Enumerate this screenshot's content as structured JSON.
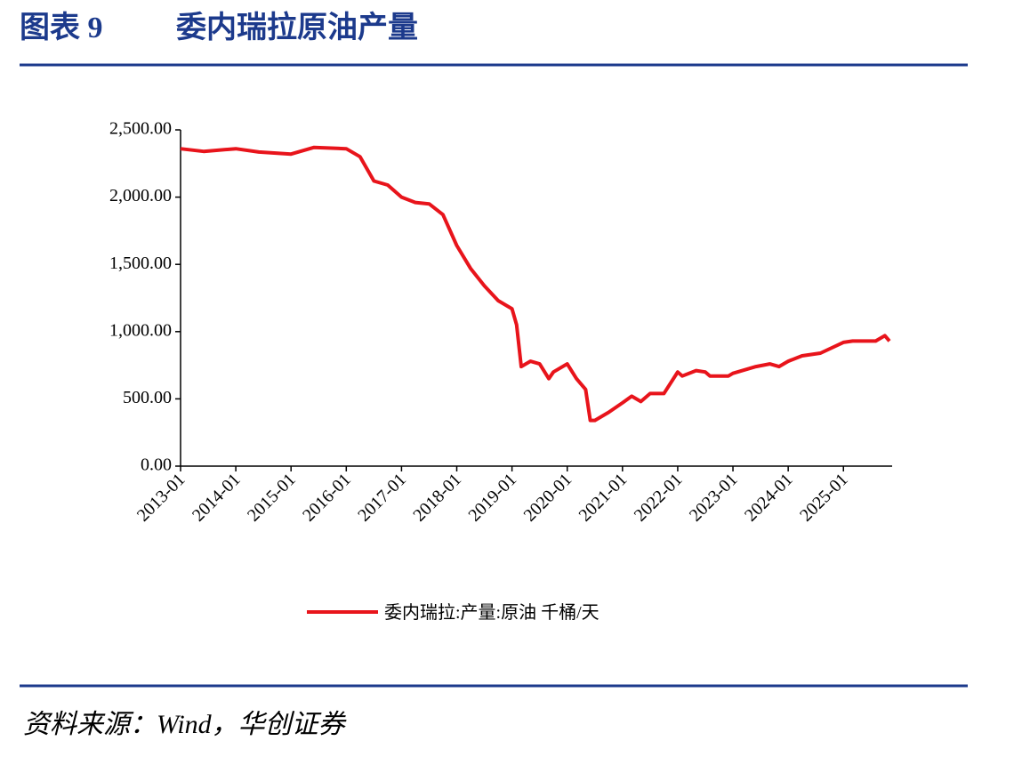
{
  "figure_label": "图表 9",
  "source": "资料来源：Wind，华创证券",
  "chart_data": {
    "type": "line",
    "title": "委内瑞拉原油产量",
    "x": [
      "2013-01",
      "2013-06",
      "2014-01",
      "2014-06",
      "2015-01",
      "2015-06",
      "2016-01",
      "2016-04",
      "2016-07",
      "2016-10",
      "2017-01",
      "2017-04",
      "2017-07",
      "2017-10",
      "2018-01",
      "2018-04",
      "2018-07",
      "2018-10",
      "2019-01",
      "2019-02",
      "2019-03",
      "2019-05",
      "2019-07",
      "2019-09",
      "2019-10",
      "2020-01",
      "2020-03",
      "2020-05",
      "2020-06",
      "2020-07",
      "2020-10",
      "2021-01",
      "2021-03",
      "2021-05",
      "2021-07",
      "2021-10",
      "2022-01",
      "2022-02",
      "2022-05",
      "2022-07",
      "2022-08",
      "2022-12",
      "2023-01",
      "2023-06",
      "2023-09",
      "2023-11",
      "2024-01",
      "2024-04",
      "2024-08",
      "2025-01",
      "2025-03",
      "2025-08",
      "2025-10",
      "2025-11"
    ],
    "series": [
      {
        "name": "委内瑞拉:产量:原油 千桶/天",
        "color": "#e8141b",
        "values": [
          2360,
          2340,
          2360,
          2335,
          2320,
          2370,
          2360,
          2300,
          2120,
          2090,
          2000,
          1960,
          1950,
          1870,
          1640,
          1470,
          1340,
          1230,
          1170,
          1050,
          740,
          780,
          760,
          650,
          700,
          760,
          650,
          570,
          340,
          340,
          400,
          470,
          520,
          480,
          540,
          540,
          700,
          670,
          710,
          700,
          670,
          670,
          690,
          740,
          760,
          740,
          780,
          820,
          840,
          920,
          930,
          930,
          970,
          930
        ]
      }
    ],
    "xlim": [
      "2013-01",
      "2025-11"
    ],
    "xticks": [
      "2013-01",
      "2014-01",
      "2015-01",
      "2016-01",
      "2017-01",
      "2018-01",
      "2019-01",
      "2020-01",
      "2021-01",
      "2022-01",
      "2023-01",
      "2024-01",
      "2025-01"
    ],
    "ylim": [
      0,
      2500
    ],
    "yticks": [
      {
        "value": 0,
        "label": "0.00"
      },
      {
        "value": 500,
        "label": "500.00"
      },
      {
        "value": 1000,
        "label": "1,000.00"
      },
      {
        "value": 1500,
        "label": "1,500.00"
      },
      {
        "value": 2000,
        "label": "2,000.00"
      },
      {
        "value": 2500,
        "label": "2,500.00"
      }
    ],
    "grid": false,
    "legend": "bottom"
  }
}
